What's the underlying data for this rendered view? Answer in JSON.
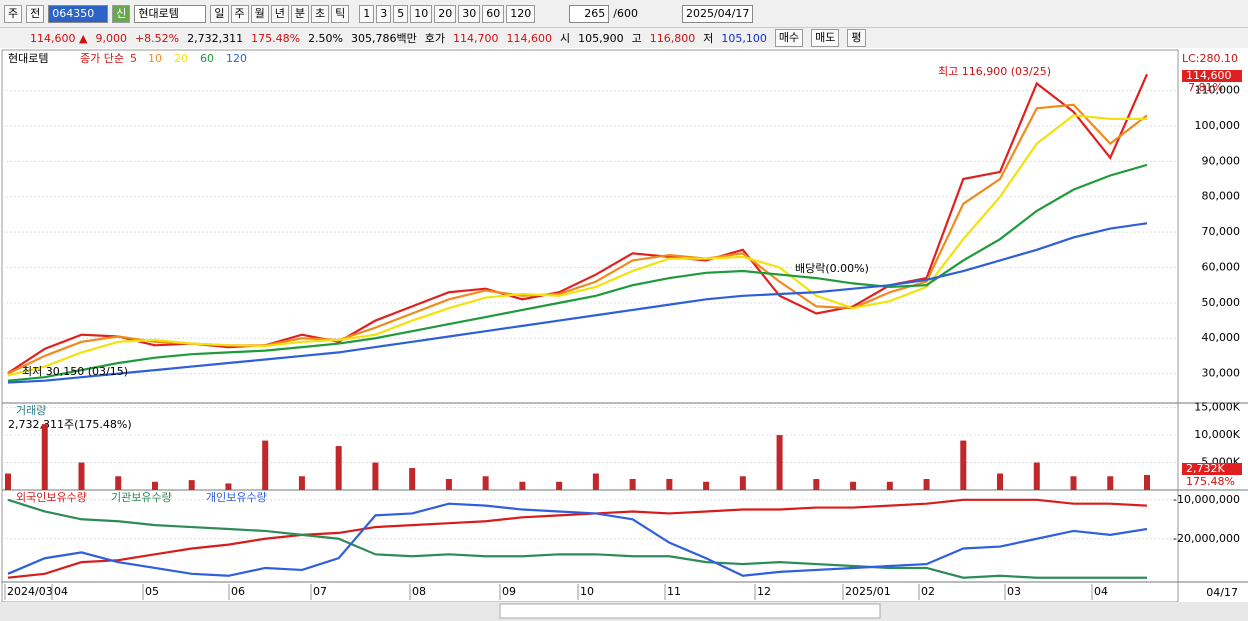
{
  "toolbar": {
    "market": "주",
    "prev": "전",
    "code": "064350",
    "credit": "신",
    "name": "현대로템",
    "periods": [
      "일",
      "주",
      "월",
      "년",
      "분",
      "초",
      "틱"
    ],
    "intervals": [
      "1",
      "3",
      "5",
      "10",
      "20",
      "30",
      "60",
      "120"
    ],
    "count": "265",
    "max": "/600",
    "date": "2025/04/17"
  },
  "quote": {
    "price": "114,600 ▲",
    "change": "9,000",
    "rate": "+8.52%",
    "volume": "2,732,311",
    "volume_ratio": "175.48%",
    "turnover": "2.50%",
    "amount": "305,786백만",
    "ask_label": "호가",
    "ask": "114,700",
    "bid": "114,600",
    "open_label": "시",
    "open": "105,900",
    "high_label": "고",
    "high": "116,800",
    "low_label": "저",
    "low": "105,100",
    "buy": "매수",
    "sell": "매도",
    "avg": "평"
  },
  "price_chart": {
    "legend_name": "현대로템",
    "legend_kind": "종가 단순",
    "ylim": [
      21700,
      120900
    ],
    "yticks": [
      {
        "value": 30000,
        "label": "30,000"
      },
      {
        "value": 40000,
        "label": "40,000"
      },
      {
        "value": 50000,
        "label": "50,000"
      },
      {
        "value": 60000,
        "label": "60,000"
      },
      {
        "value": 70000,
        "label": "70,000"
      },
      {
        "value": 80000,
        "label": "80,000"
      },
      {
        "value": 90000,
        "label": "90,000"
      },
      {
        "value": 100000,
        "label": "100,000"
      },
      {
        "value": 110000,
        "label": "110,000"
      }
    ],
    "series": [
      {
        "name": "5",
        "color": "#e0201c",
        "values": [
          30150,
          37000,
          41000,
          40500,
          38000,
          38500,
          37500,
          38000,
          41000,
          39000,
          45000,
          49000,
          53000,
          54000,
          51000,
          53000,
          58000,
          64000,
          63000,
          62000,
          65000,
          52000,
          47000,
          49000,
          55000,
          57000,
          85000,
          87000,
          112000,
          104000,
          91000,
          114600
        ]
      },
      {
        "name": "10",
        "color": "#f08a1c",
        "values": [
          30000,
          35000,
          39000,
          40500,
          39000,
          38500,
          38000,
          38000,
          40000,
          39500,
          43000,
          47000,
          51000,
          53500,
          52000,
          52500,
          56000,
          62000,
          63500,
          62500,
          64000,
          56000,
          49000,
          48500,
          53000,
          56000,
          78000,
          85000,
          105000,
          106000,
          95000,
          103000
        ]
      },
      {
        "name": "20",
        "color": "#f2e20c",
        "values": [
          29500,
          32000,
          36000,
          39000,
          39500,
          38500,
          38000,
          37800,
          39000,
          39500,
          41000,
          45000,
          48500,
          51500,
          52500,
          52000,
          54500,
          59000,
          62500,
          62500,
          63000,
          60000,
          52000,
          48500,
          50500,
          54500,
          68000,
          80000,
          95000,
          103000,
          102000,
          102000
        ]
      },
      {
        "name": "60",
        "color": "#1e9a3a",
        "values": [
          28000,
          29000,
          31000,
          33000,
          34500,
          35500,
          36000,
          36500,
          37500,
          38500,
          40000,
          42000,
          44000,
          46000,
          48000,
          50000,
          52000,
          55000,
          57000,
          58500,
          59000,
          58000,
          57000,
          55500,
          54500,
          55000,
          62000,
          68000,
          76000,
          82000,
          86000,
          89000
        ]
      },
      {
        "name": "120",
        "color": "#2f5fd8",
        "values": [
          27500,
          28000,
          29000,
          30000,
          31000,
          32000,
          33000,
          34000,
          35000,
          36000,
          37500,
          39000,
          40500,
          42000,
          43500,
          45000,
          46500,
          48000,
          49500,
          51000,
          52000,
          52500,
          53000,
          54000,
          55000,
          56500,
          59000,
          62000,
          65000,
          68500,
          71000,
          72500
        ]
      }
    ],
    "high_note": "최고 116,900 (03/25)",
    "low_note": "최저 30,150 (03/15)",
    "dividend_note": "배당락(0.00%)",
    "lc": "LC:280.10",
    "last_tag": "114,600",
    "last_rate": "7.81%"
  },
  "volume_chart": {
    "legend": "거래량",
    "info": "2,732,311주(175.48%)",
    "color": "#c0282a",
    "ylim": [
      0,
      15300
    ],
    "yticks": [
      {
        "value": 5000,
        "label": "5,000K"
      },
      {
        "value": 10000,
        "label": "10,000K"
      },
      {
        "value": 15000,
        "label": "15,000K"
      }
    ],
    "values": [
      3000,
      12000,
      5000,
      2500,
      1500,
      1800,
      1200,
      9000,
      2500,
      8000,
      5000,
      4000,
      2000,
      2500,
      1500,
      1500,
      3000,
      2000,
      2000,
      1500,
      2500,
      10000,
      2000,
      1500,
      1500,
      2000,
      9000,
      3000,
      5000,
      2500,
      2500,
      2732
    ],
    "last_tag": "2,732K",
    "last_rate": "175.48%"
  },
  "holding_chart": {
    "ylim": [
      -31100000,
      -8000000
    ],
    "yticks": [
      {
        "value": -10000000,
        "label": "-10,000,000"
      },
      {
        "value": -20000000,
        "label": "-20,000,000"
      }
    ],
    "series": [
      {
        "name": "외국인보유수량",
        "color": "#d81c1c",
        "values": [
          -30000000,
          -29000000,
          -26000000,
          -25500000,
          -24000000,
          -22500000,
          -21500000,
          -20000000,
          -19000000,
          -18500000,
          -17000000,
          -16500000,
          -16000000,
          -15500000,
          -14500000,
          -14000000,
          -13500000,
          -13000000,
          -13500000,
          -13000000,
          -12500000,
          -12500000,
          -12000000,
          -12000000,
          -11500000,
          -11000000,
          -10000000,
          -10000000,
          -10000000,
          -11000000,
          -11000000,
          -11500000
        ]
      },
      {
        "name": "기관보유수량",
        "color": "#2e8b57",
        "values": [
          -10000000,
          -13000000,
          -15000000,
          -15500000,
          -16500000,
          -17000000,
          -17500000,
          -18000000,
          -19000000,
          -20000000,
          -24000000,
          -24500000,
          -24000000,
          -24500000,
          -24500000,
          -24000000,
          -24000000,
          -24500000,
          -24500000,
          -26000000,
          -26500000,
          -26000000,
          -26500000,
          -27000000,
          -27500000,
          -27500000,
          -30000000,
          -29500000,
          -30000000,
          -30000000,
          -30000000,
          -30000000
        ]
      },
      {
        "name": "개인보유수량",
        "color": "#2f5fe0",
        "values": [
          -29000000,
          -25000000,
          -23500000,
          -26000000,
          -27500000,
          -29000000,
          -29500000,
          -27500000,
          -28000000,
          -25000000,
          -14000000,
          -13500000,
          -11000000,
          -11500000,
          -12500000,
          -13000000,
          -13500000,
          -15000000,
          -21000000,
          -25000000,
          -29500000,
          -28500000,
          -28000000,
          -27500000,
          -27000000,
          -26500000,
          -22500000,
          -22000000,
          -20000000,
          -18000000,
          -19000000,
          -17500000
        ]
      }
    ]
  },
  "x_axis": {
    "months": [
      "2024/03",
      "04",
      "05",
      "06",
      "07",
      "08",
      "09",
      "10",
      "11",
      "12",
      "2025/01",
      "02",
      "03",
      "04"
    ],
    "last": "04/17"
  }
}
